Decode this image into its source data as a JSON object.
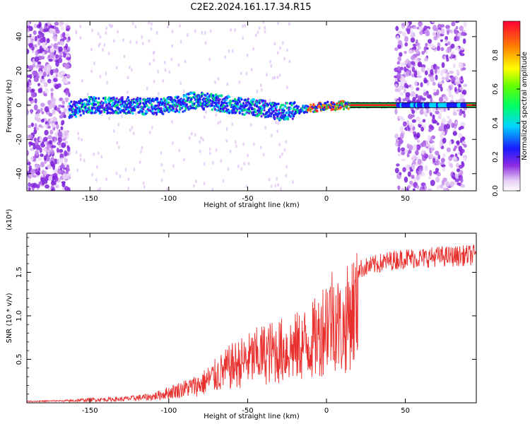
{
  "title": "C2E2.2024.161.17.34.R15",
  "chart_data": [
    {
      "type": "heatmap",
      "xlabel": "Height of straight line (km)",
      "ylabel": "Frequency (Hz)",
      "xlim": [
        -190,
        95
      ],
      "ylim": [
        -50,
        49
      ],
      "xticks": [
        "-150",
        "-100",
        "-50",
        "0",
        "50"
      ],
      "yticks": [
        "-40",
        "-20",
        "0",
        "20",
        "40"
      ],
      "colorbar": {
        "label": "Normalized spectral amplitude",
        "range": [
          0.0,
          1.0
        ],
        "ticks": [
          "0.0",
          "0.2",
          "0.4",
          "0.6",
          "0.8"
        ]
      },
      "main_signal": {
        "description_frequency_hz_vs_height": [
          [
            -163,
            -3
          ],
          [
            -150,
            0
          ],
          [
            -130,
            0
          ],
          [
            -110,
            -1
          ],
          [
            -90,
            1
          ],
          [
            -85,
            3
          ],
          [
            -75,
            2
          ],
          [
            -60,
            0
          ],
          [
            -50,
            -1
          ],
          [
            -40,
            -2
          ],
          [
            -30,
            -4
          ],
          [
            -20,
            -3
          ],
          [
            -10,
            -2
          ],
          [
            0,
            0
          ],
          [
            5,
            -1
          ],
          [
            10,
            0
          ],
          [
            15,
            0
          ],
          [
            45,
            0
          ],
          [
            92,
            0
          ]
        ]
      },
      "noise_regions_km": [
        [
          -190,
          -163
        ],
        [
          44,
          88
        ]
      ],
      "grid": false
    },
    {
      "type": "line",
      "xlabel": "Height of straight line (km)",
      "ylabel": "SNR (10 * v/v)",
      "y_multiplier": "(x10⁴)",
      "xlim": [
        -190,
        95
      ],
      "ylim": [
        0,
        1.95
      ],
      "xticks": [
        "-150",
        "-100",
        "-50",
        "0",
        "50"
      ],
      "yticks": [
        "0.5",
        "1.0",
        "1.5"
      ],
      "series": [
        {
          "color": "#e8312f",
          "envelope": [
            [
              -190,
              0.02
            ],
            [
              -165,
              0.03
            ],
            [
              -150,
              0.05
            ],
            [
              -130,
              0.06
            ],
            [
              -110,
              0.1
            ],
            [
              -95,
              0.2
            ],
            [
              -80,
              0.3
            ],
            [
              -70,
              0.45
            ],
            [
              -60,
              0.6
            ],
            [
              -50,
              0.7
            ],
            [
              -40,
              0.8
            ],
            [
              -30,
              0.85
            ],
            [
              -20,
              0.9
            ],
            [
              -10,
              1.0
            ],
            [
              -5,
              1.1
            ],
            [
              0,
              1.35
            ],
            [
              5,
              1.45
            ],
            [
              10,
              1.15
            ],
            [
              15,
              1.5
            ],
            [
              20,
              1.55
            ],
            [
              30,
              1.6
            ],
            [
              40,
              1.65
            ],
            [
              50,
              1.68
            ],
            [
              60,
              1.68
            ],
            [
              70,
              1.7
            ],
            [
              80,
              1.7
            ],
            [
              95,
              1.72
            ]
          ]
        }
      ],
      "grid": false
    }
  ]
}
